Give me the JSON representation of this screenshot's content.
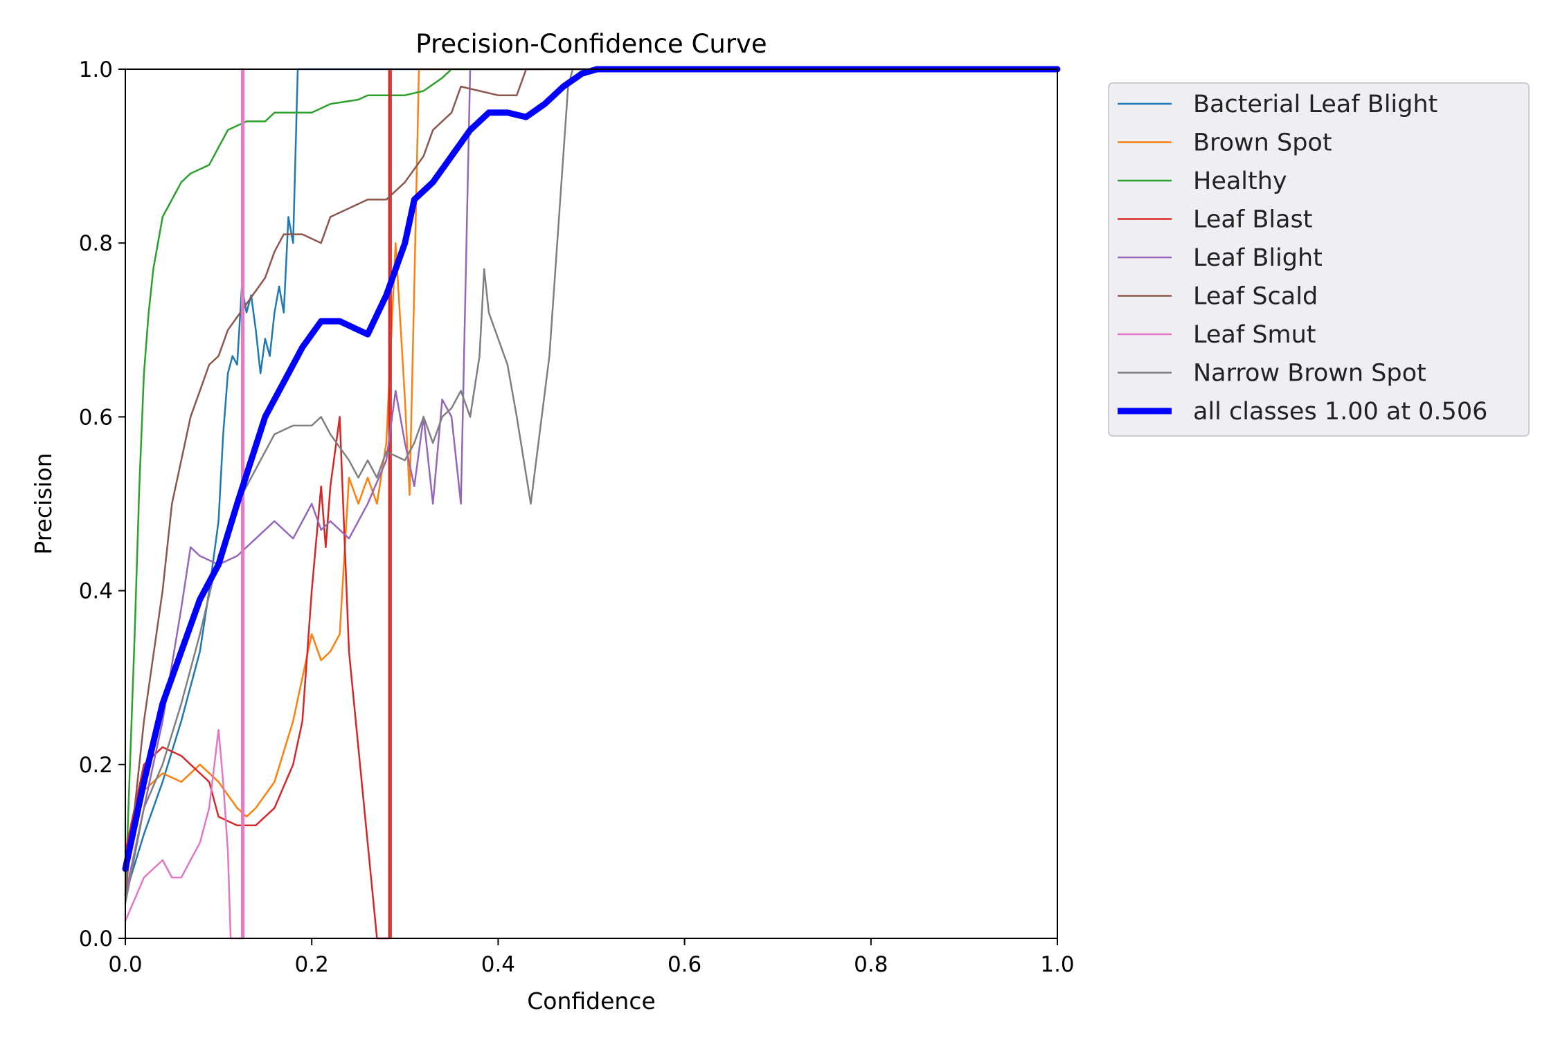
{
  "chart_data": {
    "type": "line",
    "title": "Precision-Confidence Curve",
    "xlabel": "Confidence",
    "ylabel": "Precision",
    "xlim": [
      0,
      1
    ],
    "ylim": [
      0,
      1
    ],
    "xticks": [
      "0.0",
      "0.2",
      "0.4",
      "0.6",
      "0.8",
      "1.0"
    ],
    "yticks": [
      "0.0",
      "0.2",
      "0.4",
      "0.6",
      "0.8",
      "1.0"
    ],
    "grid": false,
    "legend_position": "outside-top-right",
    "series": [
      {
        "name": "Bacterial Leaf Blight",
        "color": "#1f77b4",
        "points": [
          [
            0.0,
            0.05
          ],
          [
            0.02,
            0.12
          ],
          [
            0.04,
            0.18
          ],
          [
            0.06,
            0.25
          ],
          [
            0.08,
            0.33
          ],
          [
            0.09,
            0.4
          ],
          [
            0.1,
            0.48
          ],
          [
            0.105,
            0.58
          ],
          [
            0.11,
            0.65
          ],
          [
            0.115,
            0.67
          ],
          [
            0.12,
            0.66
          ],
          [
            0.125,
            0.75
          ],
          [
            0.13,
            0.72
          ],
          [
            0.135,
            0.74
          ],
          [
            0.14,
            0.7
          ],
          [
            0.145,
            0.65
          ],
          [
            0.15,
            0.69
          ],
          [
            0.155,
            0.67
          ],
          [
            0.16,
            0.72
          ],
          [
            0.165,
            0.75
          ],
          [
            0.17,
            0.72
          ],
          [
            0.175,
            0.83
          ],
          [
            0.18,
            0.8
          ],
          [
            0.185,
            1.0
          ],
          [
            1.0,
            1.0
          ]
        ]
      },
      {
        "name": "Brown Spot",
        "color": "#ff7f0e",
        "points": [
          [
            0.0,
            0.08
          ],
          [
            0.02,
            0.17
          ],
          [
            0.04,
            0.19
          ],
          [
            0.06,
            0.18
          ],
          [
            0.08,
            0.2
          ],
          [
            0.1,
            0.18
          ],
          [
            0.12,
            0.15
          ],
          [
            0.13,
            0.14
          ],
          [
            0.14,
            0.15
          ],
          [
            0.16,
            0.18
          ],
          [
            0.18,
            0.25
          ],
          [
            0.19,
            0.3
          ],
          [
            0.2,
            0.35
          ],
          [
            0.21,
            0.32
          ],
          [
            0.22,
            0.33
          ],
          [
            0.23,
            0.35
          ],
          [
            0.24,
            0.53
          ],
          [
            0.25,
            0.5
          ],
          [
            0.26,
            0.53
          ],
          [
            0.27,
            0.5
          ],
          [
            0.28,
            0.57
          ],
          [
            0.29,
            0.8
          ],
          [
            0.3,
            0.62
          ],
          [
            0.305,
            0.51
          ],
          [
            0.31,
            0.75
          ],
          [
            0.315,
            1.0
          ],
          [
            1.0,
            1.0
          ]
        ]
      },
      {
        "name": "Healthy",
        "color": "#2ca02c",
        "points": [
          [
            0.0,
            0.05
          ],
          [
            0.01,
            0.35
          ],
          [
            0.015,
            0.52
          ],
          [
            0.02,
            0.65
          ],
          [
            0.025,
            0.72
          ],
          [
            0.03,
            0.77
          ],
          [
            0.04,
            0.83
          ],
          [
            0.05,
            0.85
          ],
          [
            0.06,
            0.87
          ],
          [
            0.07,
            0.88
          ],
          [
            0.09,
            0.89
          ],
          [
            0.1,
            0.91
          ],
          [
            0.11,
            0.93
          ],
          [
            0.13,
            0.94
          ],
          [
            0.15,
            0.94
          ],
          [
            0.16,
            0.95
          ],
          [
            0.2,
            0.95
          ],
          [
            0.22,
            0.96
          ],
          [
            0.25,
            0.965
          ],
          [
            0.26,
            0.97
          ],
          [
            0.3,
            0.97
          ],
          [
            0.32,
            0.975
          ],
          [
            0.34,
            0.99
          ],
          [
            0.35,
            1.0
          ],
          [
            1.0,
            1.0
          ]
        ]
      },
      {
        "name": "Leaf Blast",
        "color": "#d62728",
        "points": [
          [
            0.0,
            0.1
          ],
          [
            0.02,
            0.2
          ],
          [
            0.04,
            0.22
          ],
          [
            0.06,
            0.21
          ],
          [
            0.08,
            0.19
          ],
          [
            0.09,
            0.18
          ],
          [
            0.1,
            0.14
          ],
          [
            0.12,
            0.13
          ],
          [
            0.14,
            0.13
          ],
          [
            0.16,
            0.15
          ],
          [
            0.18,
            0.2
          ],
          [
            0.19,
            0.25
          ],
          [
            0.2,
            0.4
          ],
          [
            0.21,
            0.52
          ],
          [
            0.215,
            0.45
          ],
          [
            0.22,
            0.52
          ],
          [
            0.23,
            0.6
          ],
          [
            0.24,
            0.33
          ],
          [
            0.27,
            0.0
          ],
          [
            0.283,
            0.0
          ],
          [
            0.283,
            1.0
          ],
          [
            0.285,
            1.0
          ],
          [
            0.285,
            0.0
          ]
        ]
      },
      {
        "name": "Leaf Blight",
        "color": "#9467bd",
        "points": [
          [
            0.0,
            0.05
          ],
          [
            0.02,
            0.15
          ],
          [
            0.04,
            0.25
          ],
          [
            0.06,
            0.38
          ],
          [
            0.07,
            0.45
          ],
          [
            0.08,
            0.44
          ],
          [
            0.1,
            0.43
          ],
          [
            0.12,
            0.44
          ],
          [
            0.14,
            0.46
          ],
          [
            0.16,
            0.48
          ],
          [
            0.17,
            0.47
          ],
          [
            0.18,
            0.46
          ],
          [
            0.2,
            0.5
          ],
          [
            0.21,
            0.47
          ],
          [
            0.22,
            0.48
          ],
          [
            0.24,
            0.46
          ],
          [
            0.26,
            0.5
          ],
          [
            0.28,
            0.55
          ],
          [
            0.29,
            0.63
          ],
          [
            0.3,
            0.57
          ],
          [
            0.31,
            0.52
          ],
          [
            0.32,
            0.6
          ],
          [
            0.33,
            0.5
          ],
          [
            0.34,
            0.62
          ],
          [
            0.35,
            0.6
          ],
          [
            0.36,
            0.5
          ],
          [
            0.37,
            1.0
          ],
          [
            1.0,
            1.0
          ]
        ]
      },
      {
        "name": "Leaf Scald",
        "color": "#8c564b",
        "points": [
          [
            0.0,
            0.05
          ],
          [
            0.02,
            0.25
          ],
          [
            0.04,
            0.4
          ],
          [
            0.05,
            0.5
          ],
          [
            0.06,
            0.55
          ],
          [
            0.07,
            0.6
          ],
          [
            0.08,
            0.63
          ],
          [
            0.09,
            0.66
          ],
          [
            0.1,
            0.67
          ],
          [
            0.11,
            0.7
          ],
          [
            0.13,
            0.73
          ],
          [
            0.15,
            0.76
          ],
          [
            0.16,
            0.79
          ],
          [
            0.17,
            0.81
          ],
          [
            0.19,
            0.81
          ],
          [
            0.21,
            0.8
          ],
          [
            0.22,
            0.83
          ],
          [
            0.24,
            0.84
          ],
          [
            0.26,
            0.85
          ],
          [
            0.28,
            0.85
          ],
          [
            0.3,
            0.87
          ],
          [
            0.32,
            0.9
          ],
          [
            0.33,
            0.93
          ],
          [
            0.35,
            0.95
          ],
          [
            0.36,
            0.98
          ],
          [
            0.38,
            0.975
          ],
          [
            0.4,
            0.97
          ],
          [
            0.42,
            0.97
          ],
          [
            0.43,
            1.0
          ],
          [
            1.0,
            1.0
          ]
        ]
      },
      {
        "name": "Leaf Smut",
        "color": "#e377c2",
        "points": [
          [
            0.0,
            0.02
          ],
          [
            0.02,
            0.07
          ],
          [
            0.04,
            0.09
          ],
          [
            0.05,
            0.07
          ],
          [
            0.06,
            0.07
          ],
          [
            0.07,
            0.09
          ],
          [
            0.08,
            0.11
          ],
          [
            0.09,
            0.15
          ],
          [
            0.1,
            0.24
          ],
          [
            0.105,
            0.18
          ],
          [
            0.11,
            0.1
          ],
          [
            0.113,
            0.0
          ],
          [
            0.125,
            0.0
          ],
          [
            0.125,
            1.0
          ],
          [
            0.127,
            1.0
          ],
          [
            0.127,
            0.0
          ]
        ]
      },
      {
        "name": "Narrow Brown Spot",
        "color": "#7f7f7f",
        "points": [
          [
            0.0,
            0.04
          ],
          [
            0.02,
            0.15
          ],
          [
            0.04,
            0.2
          ],
          [
            0.06,
            0.27
          ],
          [
            0.08,
            0.35
          ],
          [
            0.1,
            0.44
          ],
          [
            0.12,
            0.5
          ],
          [
            0.14,
            0.54
          ],
          [
            0.16,
            0.58
          ],
          [
            0.18,
            0.59
          ],
          [
            0.2,
            0.59
          ],
          [
            0.21,
            0.6
          ],
          [
            0.22,
            0.58
          ],
          [
            0.24,
            0.55
          ],
          [
            0.25,
            0.53
          ],
          [
            0.26,
            0.55
          ],
          [
            0.27,
            0.53
          ],
          [
            0.28,
            0.56
          ],
          [
            0.3,
            0.55
          ],
          [
            0.31,
            0.57
          ],
          [
            0.32,
            0.6
          ],
          [
            0.33,
            0.57
          ],
          [
            0.34,
            0.6
          ],
          [
            0.35,
            0.61
          ],
          [
            0.36,
            0.63
          ],
          [
            0.37,
            0.6
          ],
          [
            0.38,
            0.67
          ],
          [
            0.385,
            0.77
          ],
          [
            0.39,
            0.72
          ],
          [
            0.41,
            0.66
          ],
          [
            0.42,
            0.6
          ],
          [
            0.435,
            0.5
          ],
          [
            0.455,
            0.67
          ],
          [
            0.475,
            0.98
          ],
          [
            0.48,
            1.0
          ],
          [
            1.0,
            1.0
          ]
        ]
      },
      {
        "name": "all classes 1.00 at 0.506",
        "color": "#0000ff",
        "bold": true,
        "points": [
          [
            0.0,
            0.08
          ],
          [
            0.02,
            0.18
          ],
          [
            0.04,
            0.27
          ],
          [
            0.06,
            0.33
          ],
          [
            0.08,
            0.39
          ],
          [
            0.1,
            0.43
          ],
          [
            0.12,
            0.5
          ],
          [
            0.15,
            0.6
          ],
          [
            0.17,
            0.64
          ],
          [
            0.19,
            0.68
          ],
          [
            0.21,
            0.71
          ],
          [
            0.23,
            0.71
          ],
          [
            0.25,
            0.7
          ],
          [
            0.26,
            0.695
          ],
          [
            0.28,
            0.74
          ],
          [
            0.3,
            0.8
          ],
          [
            0.31,
            0.85
          ],
          [
            0.33,
            0.87
          ],
          [
            0.35,
            0.9
          ],
          [
            0.37,
            0.93
          ],
          [
            0.39,
            0.95
          ],
          [
            0.41,
            0.95
          ],
          [
            0.43,
            0.945
          ],
          [
            0.45,
            0.96
          ],
          [
            0.47,
            0.98
          ],
          [
            0.49,
            0.995
          ],
          [
            0.506,
            1.0
          ],
          [
            1.0,
            1.0
          ]
        ]
      }
    ]
  }
}
